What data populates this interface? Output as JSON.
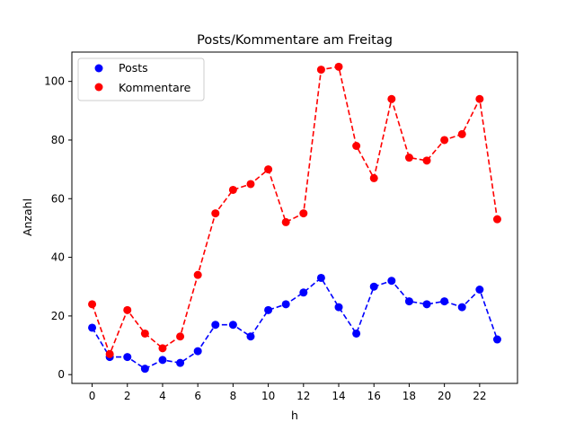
{
  "chart_data": {
    "type": "line",
    "title": "Posts/Kommentare am Freitag",
    "xlabel": "h",
    "ylabel": "Anzahl",
    "xlim": [
      -1.15,
      24.15
    ],
    "ylim": [
      -3,
      110
    ],
    "xticks": [
      "0",
      "2",
      "4",
      "6",
      "8",
      "10",
      "12",
      "14",
      "16",
      "18",
      "20",
      "22"
    ],
    "yticks": [
      "0",
      "20",
      "40",
      "60",
      "80",
      "100"
    ],
    "grid": false,
    "legend_position": "top-left",
    "x": [
      0,
      1,
      2,
      3,
      4,
      5,
      6,
      7,
      8,
      9,
      10,
      11,
      12,
      13,
      14,
      15,
      16,
      17,
      18,
      19,
      20,
      21,
      22,
      23
    ],
    "series": [
      {
        "name": "Posts",
        "color": "#0000ff",
        "values": [
          16,
          6,
          6,
          2,
          5,
          4,
          8,
          17,
          17,
          13,
          22,
          24,
          28,
          33,
          23,
          14,
          30,
          32,
          25,
          24,
          25,
          23,
          29,
          12
        ]
      },
      {
        "name": "Kommentare",
        "color": "#ff0000",
        "values": [
          24,
          7,
          22,
          14,
          9,
          13,
          34,
          55,
          63,
          65,
          70,
          52,
          55,
          104,
          105,
          78,
          67,
          94,
          74,
          73,
          80,
          82,
          94,
          53
        ]
      }
    ]
  }
}
